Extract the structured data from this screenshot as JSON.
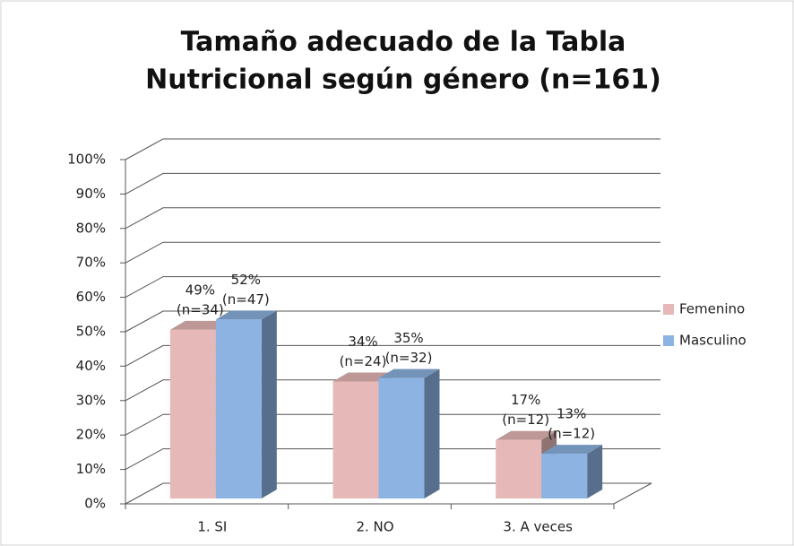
{
  "chart_data": {
    "type": "bar3d",
    "title": [
      "Tamaño adecuado de la Tabla",
      "Nutricional según género (n=161)"
    ],
    "categories": [
      "1. SI",
      "2. NO",
      "3. A veces"
    ],
    "series": [
      {
        "name": "Femenino",
        "color": "#e6b9b8",
        "values": [
          49,
          34,
          17
        ],
        "value_labels": [
          "49%",
          "34%",
          "17%"
        ],
        "count_labels": [
          "(n=34)",
          "(n=24)",
          "(n=12)"
        ]
      },
      {
        "name": "Masculino",
        "color": "#8db3e2",
        "values": [
          52,
          35,
          13
        ],
        "value_labels": [
          "52%",
          "35%",
          "13%"
        ],
        "count_labels": [
          "(n=47)",
          "(n=32)",
          "(n=12)"
        ]
      }
    ],
    "ylim": [
      0,
      100
    ],
    "yticks": [
      {
        "value": 0,
        "label": "0%"
      },
      {
        "value": 10,
        "label": "10%"
      },
      {
        "value": 20,
        "label": "20%"
      },
      {
        "value": 30,
        "label": "30%"
      },
      {
        "value": 40,
        "label": "40%"
      },
      {
        "value": 50,
        "label": "50%"
      },
      {
        "value": 60,
        "label": "60%"
      },
      {
        "value": 70,
        "label": "70%"
      },
      {
        "value": 80,
        "label": "80%"
      },
      {
        "value": 90,
        "label": "90%"
      },
      {
        "value": 100,
        "label": "100%"
      }
    ],
    "grid": true,
    "legend": "right"
  }
}
